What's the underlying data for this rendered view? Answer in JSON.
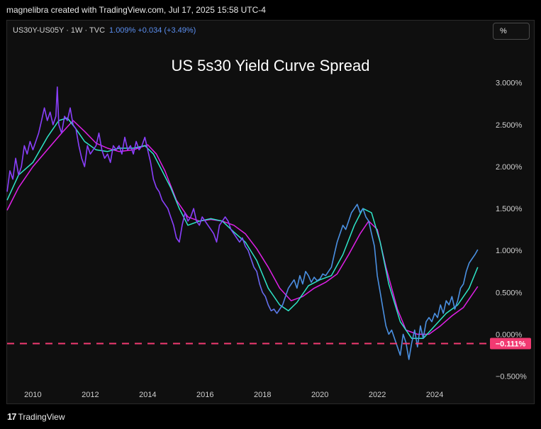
{
  "header": {
    "attribution": "magnelibra created with TradingView.com, Jul 17, 2025 15:58 UTC-4"
  },
  "symbol": {
    "label": "US30Y-US05Y · 1W · TVC",
    "value_text": "1.009%  +0.034 (+3.49%)"
  },
  "scale_button": {
    "label": "%"
  },
  "footer": {
    "logo_text": "TradingView",
    "logo_mark": "17"
  },
  "colors": {
    "price": "#8a3ffc",
    "price_recent": "#4a90e2",
    "fast_ma": "#2ee6c8",
    "slow_ma": "#e020e8",
    "level_line": "#f23a72"
  },
  "chart_data": {
    "type": "line",
    "title": "US 5s30 Yield Curve Spread",
    "xlim": [
      2009.1,
      2025.9
    ],
    "ylim": [
      -0.58,
      3.48
    ],
    "x_ticks": [
      2010,
      2012,
      2014,
      2016,
      2018,
      2020,
      2022,
      2024
    ],
    "x_tick_labels": [
      "2010",
      "2012",
      "2014",
      "2016",
      "2018",
      "2020",
      "2022",
      "2024"
    ],
    "y_ticks": [
      3.0,
      2.5,
      2.0,
      1.5,
      1.0,
      0.5,
      0.0,
      -0.5
    ],
    "y_tick_labels": [
      "3.000%",
      "2.500%",
      "2.000%",
      "1.500%",
      "1.000%",
      "0.500%",
      "0.000%",
      "−0.500%"
    ],
    "level": {
      "value": -0.111,
      "label": "−0.111%"
    },
    "series": [
      {
        "x": [
          2009.1,
          2009.2,
          2009.3,
          2009.4,
          2009.5,
          2009.6,
          2009.7,
          2009.8,
          2009.9,
          2010.0,
          2010.1,
          2010.2,
          2010.3,
          2010.4,
          2010.5,
          2010.6,
          2010.7,
          2010.8,
          2010.85,
          2010.9,
          2011.0,
          2011.1,
          2011.2,
          2011.3,
          2011.4,
          2011.5,
          2011.6,
          2011.7,
          2011.8,
          2011.9,
          2012.0,
          2012.1,
          2012.2,
          2012.3,
          2012.4,
          2012.5,
          2012.6,
          2012.7,
          2012.8,
          2012.9,
          2013.0,
          2013.1,
          2013.2,
          2013.3,
          2013.4,
          2013.5,
          2013.6,
          2013.7,
          2013.8,
          2013.9,
          2014.0,
          2014.1,
          2014.2,
          2014.3,
          2014.4,
          2014.5,
          2014.6,
          2014.7,
          2014.8,
          2014.9,
          2015.0,
          2015.1,
          2015.2,
          2015.3,
          2015.4,
          2015.5,
          2015.6,
          2015.7,
          2015.8,
          2015.9,
          2016.0,
          2016.1,
          2016.2,
          2016.3,
          2016.4,
          2016.5,
          2016.6,
          2016.7,
          2016.8,
          2016.9,
          2017.0,
          2017.1,
          2017.2,
          2017.3,
          2017.4,
          2017.5,
          2017.6,
          2017.7,
          2017.8,
          2017.9,
          2018.0,
          2018.1,
          2018.2,
          2018.3,
          2018.4,
          2018.5,
          2018.6,
          2018.7,
          2018.8,
          2018.9,
          2019.0,
          2019.1,
          2019.2,
          2019.3,
          2019.4,
          2019.5,
          2019.6,
          2019.7,
          2019.8,
          2019.9,
          2020.0,
          2020.1,
          2020.2,
          2020.3,
          2020.4,
          2020.5,
          2020.6,
          2020.7,
          2020.8,
          2020.9,
          2021.0,
          2021.1,
          2021.2,
          2021.3,
          2021.4,
          2021.5,
          2021.6,
          2021.7,
          2021.8,
          2021.9,
          2022.0,
          2022.1,
          2022.2,
          2022.3,
          2022.4,
          2022.5,
          2022.6,
          2022.7,
          2022.8,
          2022.9,
          2023.0,
          2023.1,
          2023.2,
          2023.3,
          2023.4,
          2023.5,
          2023.6,
          2023.7,
          2023.8,
          2023.9,
          2024.0,
          2024.1,
          2024.2,
          2024.3,
          2024.4,
          2024.5,
          2024.6,
          2024.7,
          2024.8,
          2024.9,
          2025.0,
          2025.1,
          2025.2,
          2025.3,
          2025.4,
          2025.5
        ],
        "values": [
          1.7,
          1.95,
          1.85,
          2.1,
          1.9,
          2.0,
          2.25,
          2.15,
          2.3,
          2.2,
          2.3,
          2.4,
          2.55,
          2.7,
          2.55,
          2.65,
          2.5,
          2.6,
          2.95,
          2.5,
          2.4,
          2.6,
          2.55,
          2.7,
          2.5,
          2.45,
          2.25,
          2.1,
          2.0,
          2.25,
          2.15,
          2.2,
          2.25,
          2.4,
          2.2,
          2.1,
          2.15,
          2.05,
          2.25,
          2.2,
          2.25,
          2.15,
          2.35,
          2.2,
          2.25,
          2.15,
          2.3,
          2.2,
          2.25,
          2.35,
          2.2,
          2.05,
          1.85,
          1.75,
          1.7,
          1.6,
          1.55,
          1.5,
          1.4,
          1.3,
          1.15,
          1.1,
          1.3,
          1.45,
          1.35,
          1.4,
          1.5,
          1.35,
          1.3,
          1.4,
          1.35,
          1.3,
          1.25,
          1.2,
          1.1,
          1.3,
          1.35,
          1.4,
          1.35,
          1.25,
          1.2,
          1.15,
          1.1,
          1.15,
          1.05,
          1.0,
          0.9,
          0.8,
          0.75,
          0.6,
          0.5,
          0.45,
          0.35,
          0.28,
          0.3,
          0.25,
          0.3,
          0.35,
          0.45,
          0.55,
          0.6,
          0.65,
          0.55,
          0.7,
          0.6,
          0.75,
          0.7,
          0.62,
          0.68,
          0.64,
          0.66,
          0.72,
          0.7,
          0.75,
          0.8,
          0.95,
          1.1,
          1.2,
          1.3,
          1.25,
          1.35,
          1.45,
          1.5,
          1.55,
          1.45,
          1.5,
          1.4,
          1.35,
          1.2,
          1.05,
          0.7,
          0.5,
          0.3,
          0.1,
          0.0,
          0.05,
          -0.05,
          -0.15,
          -0.25,
          0.0,
          -0.1,
          -0.3,
          -0.1,
          0.05,
          -0.15,
          0.1,
          -0.05,
          0.15,
          0.2,
          0.15,
          0.25,
          0.2,
          0.35,
          0.25,
          0.4,
          0.35,
          0.45,
          0.3,
          0.4,
          0.55,
          0.6,
          0.75,
          0.85,
          0.9,
          0.95,
          1.01
        ]
      },
      {
        "x": [
          2009.1,
          2009.5,
          2010.0,
          2010.5,
          2010.9,
          2011.2,
          2011.5,
          2011.8,
          2012.2,
          2012.6,
          2013.0,
          2013.5,
          2013.9,
          2014.2,
          2014.5,
          2014.8,
          2015.1,
          2015.4,
          2015.8,
          2016.2,
          2016.6,
          2017.0,
          2017.4,
          2017.8,
          2018.2,
          2018.6,
          2018.9,
          2019.2,
          2019.6,
          2020.0,
          2020.4,
          2020.8,
          2021.2,
          2021.5,
          2021.8,
          2022.1,
          2022.4,
          2022.8,
          2023.2,
          2023.6,
          2024.0,
          2024.4,
          2024.8,
          2025.2,
          2025.5
        ],
        "values": [
          1.6,
          1.9,
          2.05,
          2.35,
          2.55,
          2.58,
          2.45,
          2.3,
          2.2,
          2.18,
          2.22,
          2.22,
          2.25,
          2.15,
          1.95,
          1.75,
          1.5,
          1.3,
          1.35,
          1.38,
          1.35,
          1.22,
          1.1,
          0.88,
          0.55,
          0.35,
          0.28,
          0.38,
          0.58,
          0.65,
          0.7,
          0.95,
          1.3,
          1.5,
          1.45,
          1.1,
          0.6,
          0.15,
          -0.05,
          -0.05,
          0.1,
          0.25,
          0.35,
          0.55,
          0.8
        ]
      },
      {
        "x": [
          2009.1,
          2009.5,
          2010.0,
          2010.5,
          2011.0,
          2011.4,
          2011.8,
          2012.2,
          2012.6,
          2013.0,
          2013.5,
          2014.0,
          2014.3,
          2014.6,
          2015.0,
          2015.4,
          2015.8,
          2016.2,
          2016.6,
          2017.0,
          2017.4,
          2017.8,
          2018.2,
          2018.6,
          2019.0,
          2019.4,
          2019.8,
          2020.2,
          2020.6,
          2021.0,
          2021.4,
          2021.7,
          2022.0,
          2022.3,
          2022.7,
          2023.0,
          2023.4,
          2023.8,
          2024.2,
          2024.6,
          2025.0,
          2025.5
        ],
        "values": [
          1.48,
          1.75,
          2.0,
          2.2,
          2.4,
          2.55,
          2.42,
          2.28,
          2.22,
          2.18,
          2.2,
          2.26,
          2.15,
          1.95,
          1.6,
          1.4,
          1.35,
          1.37,
          1.35,
          1.3,
          1.2,
          1.02,
          0.8,
          0.55,
          0.4,
          0.45,
          0.55,
          0.62,
          0.72,
          0.95,
          1.2,
          1.35,
          1.25,
          0.8,
          0.3,
          0.05,
          0.0,
          0.0,
          0.1,
          0.22,
          0.32,
          0.57
        ]
      }
    ]
  }
}
